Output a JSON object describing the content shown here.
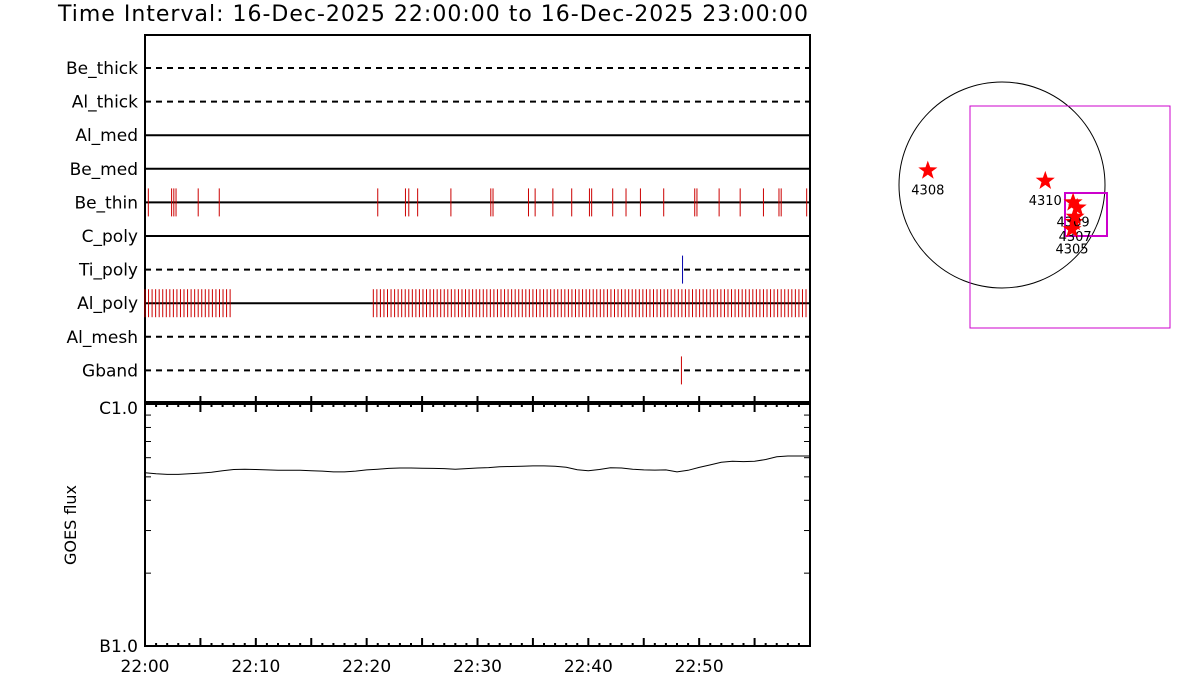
{
  "title": "Time Interval: 16-Dec-2025 22:00:00 to 16-Dec-2025 23:00:00",
  "colors": {
    "event": "#cc0000",
    "ti_event": "#0000aa",
    "star": "#ff0000",
    "box": "#cc00cc"
  },
  "chart_data": [
    {
      "type": "timeline",
      "time_unit": "minutes after 22:00",
      "xlim": [
        0,
        60
      ],
      "x_ticks": [
        "22:00",
        "22:10",
        "22:20",
        "22:30",
        "22:40",
        "22:50"
      ],
      "rows": [
        {
          "name": "Be_thick",
          "style": "dashed",
          "events": []
        },
        {
          "name": "Al_thick",
          "style": "dashed",
          "events": []
        },
        {
          "name": "Al_med",
          "style": "solid",
          "events": []
        },
        {
          "name": "Be_med",
          "style": "solid",
          "events": []
        },
        {
          "name": "Be_thin",
          "style": "solid",
          "event_color": "event",
          "events": [
            0.3,
            2.4,
            2.6,
            2.8,
            4.8,
            6.7,
            21.0,
            23.5,
            23.8,
            24.6,
            27.6,
            31.2,
            31.4,
            34.6,
            35.2,
            36.8,
            38.5,
            40.1,
            40.3,
            42.2,
            43.4,
            44.7,
            46.8,
            49.6,
            49.8,
            51.8,
            53.7,
            55.8,
            57.2,
            57.4,
            59.7
          ]
        },
        {
          "name": "C_poly",
          "style": "solid",
          "events": []
        },
        {
          "name": "Ti_poly",
          "style": "dashed",
          "event_color": "ti_event",
          "events": [
            48.5
          ]
        },
        {
          "name": "Al_poly",
          "style": "solid",
          "event_color": "event",
          "dense": true,
          "segments": [
            [
              0.0,
              7.8
            ],
            [
              20.6,
              59.9
            ]
          ],
          "spacing": 0.32
        },
        {
          "name": "Al_mesh",
          "style": "dashed",
          "events": []
        },
        {
          "name": "Gband",
          "style": "dashed",
          "event_color": "event",
          "events": [
            48.4
          ]
        }
      ]
    },
    {
      "type": "line",
      "ylabel": "GOES flux",
      "y_scale": "log",
      "y_ticks": [
        "C1.0",
        "B1.0"
      ],
      "ylim": [
        1e-07,
        1e-06
      ],
      "xlim": [
        0,
        60
      ],
      "x": [
        0,
        1,
        2,
        3,
        4,
        5,
        6,
        7,
        8,
        9,
        10,
        11,
        12,
        13,
        14,
        15,
        16,
        17,
        18,
        19,
        20,
        21,
        22,
        23,
        24,
        25,
        26,
        27,
        28,
        29,
        30,
        31,
        32,
        33,
        34,
        35,
        36,
        37,
        38,
        39,
        40,
        41,
        42,
        43,
        44,
        45,
        46,
        47,
        48,
        49,
        50,
        51,
        52,
        53,
        54,
        55,
        56,
        57,
        58,
        59,
        60
      ],
      "y": [
        5.2e-07,
        5.15e-07,
        5.12e-07,
        5.12e-07,
        5.15e-07,
        5.18e-07,
        5.22e-07,
        5.3e-07,
        5.36e-07,
        5.38e-07,
        5.36e-07,
        5.34e-07,
        5.32e-07,
        5.32e-07,
        5.32e-07,
        5.3e-07,
        5.28e-07,
        5.24e-07,
        5.24e-07,
        5.28e-07,
        5.34e-07,
        5.38e-07,
        5.42e-07,
        5.44e-07,
        5.44e-07,
        5.43e-07,
        5.42e-07,
        5.41e-07,
        5.38e-07,
        5.41e-07,
        5.44e-07,
        5.46e-07,
        5.5e-07,
        5.52e-07,
        5.53e-07,
        5.55e-07,
        5.55e-07,
        5.53e-07,
        5.48e-07,
        5.35e-07,
        5.3e-07,
        5.36e-07,
        5.45e-07,
        5.44e-07,
        5.38e-07,
        5.34e-07,
        5.33e-07,
        5.34e-07,
        5.24e-07,
        5.32e-07,
        5.47e-07,
        5.6e-07,
        5.74e-07,
        5.8e-07,
        5.78e-07,
        5.8e-07,
        5.9e-07,
        6.05e-07,
        6.1e-07,
        6.1e-07,
        6.1e-07
      ]
    },
    {
      "type": "scatter",
      "description_of_axes": "solar disk, arbitrary units",
      "points": [
        {
          "label": "4308",
          "x": -0.72,
          "y": 0.14
        },
        {
          "label": "4310",
          "x": 0.42,
          "y": 0.04
        },
        {
          "label": "4309",
          "x": 0.69,
          "y": -0.17
        },
        {
          "label": "4307",
          "x": 0.71,
          "y": -0.31
        },
        {
          "label": "4305",
          "x": 0.68,
          "y": -0.43
        }
      ],
      "extra_points": [
        {
          "x": 0.73,
          "y": -0.22
        },
        {
          "x": 0.7,
          "y": -0.36
        }
      ]
    }
  ]
}
